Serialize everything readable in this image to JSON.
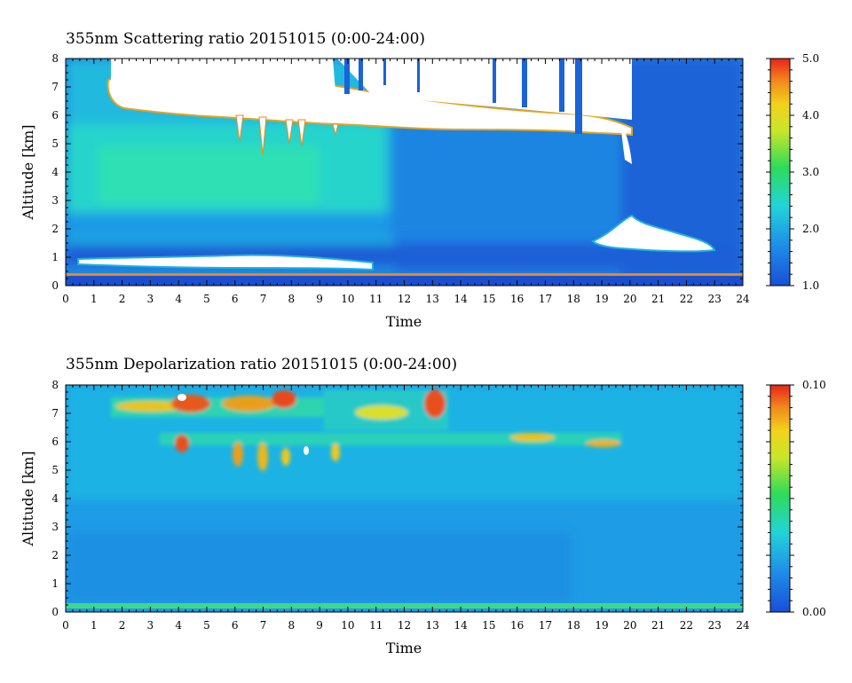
{
  "chart_data": [
    {
      "type": "heatmap",
      "title": "355nm Scattering ratio  20151015 (0:00-24:00)",
      "xlabel": "Time",
      "ylabel": "Altitude [km]",
      "xlim": [
        0,
        24
      ],
      "ylim": [
        0,
        8
      ],
      "x_ticks": [
        "0",
        "1",
        "2",
        "3",
        "4",
        "5",
        "6",
        "7",
        "8",
        "9",
        "10",
        "11",
        "12",
        "13",
        "14",
        "15",
        "16",
        "17",
        "18",
        "19",
        "20",
        "21",
        "22",
        "23",
        "24"
      ],
      "y_ticks": [
        "0",
        "1",
        "2",
        "3",
        "4",
        "5",
        "6",
        "7",
        "8"
      ],
      "colorbar": {
        "range": [
          1.0,
          5.0
        ],
        "ticks": [
          "1.0",
          "2.0",
          "3.0",
          "4.0",
          "5.0"
        ]
      },
      "features": [
        {
          "kind": "cloud",
          "x_start": 1.7,
          "x_end": 17.8,
          "alt_bottom": 5.6,
          "alt_top": 7.2,
          "value": "saturated"
        },
        {
          "kind": "cloud",
          "x_start": 18.0,
          "x_end": 20.0,
          "alt_bottom": 5.4,
          "alt_top": 5.9,
          "value": "saturated"
        },
        {
          "kind": "low_cloud",
          "x_start": 0.5,
          "x_end": 10.8,
          "alt_bottom": 0.6,
          "alt_top": 0.95,
          "value": "saturated"
        },
        {
          "kind": "low_cloud",
          "x_start": 18.6,
          "x_end": 23.3,
          "alt_bottom": 1.2,
          "alt_top": 2.3,
          "value": "saturated"
        },
        {
          "kind": "aerosol_layer",
          "x_start": 0,
          "x_end": 11,
          "alt_bottom": 2.5,
          "alt_top": 5.0,
          "value": 2.0
        }
      ]
    },
    {
      "type": "heatmap",
      "title": "355nm Depolarization ratio  20151015 (0:00-24:00)",
      "xlabel": "Time",
      "ylabel": "Altitude [km]",
      "xlim": [
        0,
        24
      ],
      "ylim": [
        0,
        8
      ],
      "x_ticks": [
        "0",
        "1",
        "2",
        "3",
        "4",
        "5",
        "6",
        "7",
        "8",
        "9",
        "10",
        "11",
        "12",
        "13",
        "14",
        "15",
        "16",
        "17",
        "18",
        "19",
        "20",
        "21",
        "22",
        "23",
        "24"
      ],
      "y_ticks": [
        "0",
        "1",
        "2",
        "3",
        "4",
        "5",
        "6",
        "7",
        "8"
      ],
      "colorbar": {
        "range": [
          0.0,
          0.1
        ],
        "ticks": [
          "0.00",
          "0.10"
        ]
      },
      "features": [
        {
          "kind": "cloud",
          "x_start": 1.7,
          "x_end": 13.5,
          "alt_bottom": 6.9,
          "alt_top": 7.9,
          "value": 0.1
        },
        {
          "kind": "cloud",
          "x_start": 2.0,
          "x_end": 20.0,
          "alt_bottom": 5.5,
          "alt_top": 6.2,
          "value": 0.06
        },
        {
          "kind": "surface_layer",
          "x_start": 0,
          "x_end": 24,
          "alt_bottom": 0.0,
          "alt_top": 0.15,
          "value": 0.035
        }
      ]
    }
  ]
}
